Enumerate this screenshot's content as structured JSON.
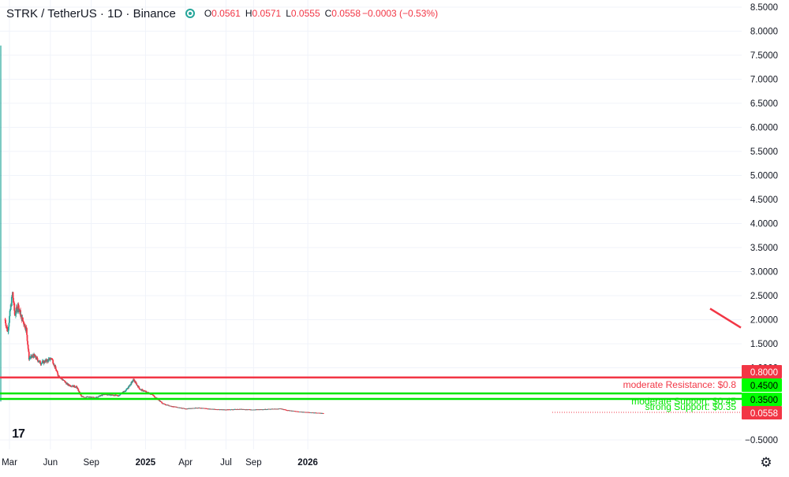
{
  "header": {
    "symbol": "STRK / TetherUS · 1D · Binance",
    "o_label": "O",
    "o_value": "0.0561",
    "h_label": "H",
    "h_value": "0.0571",
    "l_label": "L",
    "l_value": "0.0555",
    "c_label": "C",
    "c_value": "0.0558",
    "change": "−0.0003 (−0.53%)"
  },
  "colors": {
    "up": "#26a69a",
    "down": "#f23645",
    "resistance": "#f23645",
    "support": "#00e600",
    "grid": "#f0f3fa",
    "text": "#131722",
    "trend": "#f23645"
  },
  "icons": {
    "logo": "tradingview-logo-icon",
    "settings": "gear-icon",
    "status": "live-status-dot-icon"
  },
  "chart_data": {
    "type": "candlestick",
    "title": "STRK / TetherUS · 1D · Binance",
    "grid": true,
    "ylim": [
      -0.5,
      8.5
    ],
    "y_ticks": [
      "8.5000",
      "8.0000",
      "7.5000",
      "7.0000",
      "6.5000",
      "6.0000",
      "5.5000",
      "5.0000",
      "4.5000",
      "4.0000",
      "3.5000",
      "3.0000",
      "2.5000",
      "2.0000",
      "1.5000",
      "1.0000",
      "0.8000",
      "0.4500",
      "0.3500",
      "0.0558",
      "−0.5000"
    ],
    "x_ticks": [
      {
        "label": "Mar",
        "date": "2024-03-01",
        "bold": false
      },
      {
        "label": "Jun",
        "date": "2024-06-01",
        "bold": false
      },
      {
        "label": "Sep",
        "date": "2024-09-01",
        "bold": false
      },
      {
        "label": "2025",
        "date": "2025-01-01",
        "bold": true
      },
      {
        "label": "Apr",
        "date": "2025-04-01",
        "bold": false
      },
      {
        "label": "Jul",
        "date": "2025-07-01",
        "bold": false
      },
      {
        "label": "Sep",
        "date": "2025-09-01",
        "bold": false
      },
      {
        "label": "2026",
        "date": "2026-01-01",
        "bold": true
      }
    ],
    "price_trajectory": [
      {
        "date": "2024-02-20",
        "close": 2.0
      },
      {
        "date": "2024-02-26",
        "close": 1.75
      },
      {
        "date": "2024-03-05",
        "close": 2.35
      },
      {
        "date": "2024-03-08",
        "close": 2.55
      },
      {
        "date": "2024-03-13",
        "close": 2.1
      },
      {
        "date": "2024-03-20",
        "close": 2.3
      },
      {
        "date": "2024-03-28",
        "close": 2.05
      },
      {
        "date": "2024-04-08",
        "close": 1.8
      },
      {
        "date": "2024-04-14",
        "close": 1.2
      },
      {
        "date": "2024-04-25",
        "close": 1.25
      },
      {
        "date": "2024-05-10",
        "close": 1.1
      },
      {
        "date": "2024-05-25",
        "close": 1.15
      },
      {
        "date": "2024-06-04",
        "close": 1.2
      },
      {
        "date": "2024-06-18",
        "close": 0.85
      },
      {
        "date": "2024-07-10",
        "close": 0.65
      },
      {
        "date": "2024-07-30",
        "close": 0.6
      },
      {
        "date": "2024-08-10",
        "close": 0.4
      },
      {
        "date": "2024-09-10",
        "close": 0.38
      },
      {
        "date": "2024-10-01",
        "close": 0.45
      },
      {
        "date": "2024-11-01",
        "close": 0.42
      },
      {
        "date": "2024-11-20",
        "close": 0.55
      },
      {
        "date": "2024-12-05",
        "close": 0.75
      },
      {
        "date": "2024-12-20",
        "close": 0.55
      },
      {
        "date": "2025-01-15",
        "close": 0.45
      },
      {
        "date": "2025-02-10",
        "close": 0.25
      },
      {
        "date": "2025-03-01",
        "close": 0.2
      },
      {
        "date": "2025-04-01",
        "close": 0.15
      },
      {
        "date": "2025-05-01",
        "close": 0.17
      },
      {
        "date": "2025-06-01",
        "close": 0.14
      },
      {
        "date": "2025-07-01",
        "close": 0.13
      },
      {
        "date": "2025-08-01",
        "close": 0.14
      },
      {
        "date": "2025-09-01",
        "close": 0.13
      },
      {
        "date": "2025-10-01",
        "close": 0.14
      },
      {
        "date": "2025-11-01",
        "close": 0.15
      },
      {
        "date": "2025-11-15",
        "close": 0.12
      },
      {
        "date": "2025-12-10",
        "close": 0.09
      },
      {
        "date": "2026-01-10",
        "close": 0.07
      },
      {
        "date": "2026-02-05",
        "close": 0.0558
      }
    ],
    "last_price": 0.0558,
    "horizontal_levels": [
      {
        "label": "moderate Resistance: $0.8",
        "price": 0.8,
        "axis_label": "0.8000",
        "kind": "resistance"
      },
      {
        "label": "moderate Support: $0.45",
        "price": 0.45,
        "axis_label": "0.4500",
        "kind": "support"
      },
      {
        "label": "strong Support: $0.35",
        "price": 0.35,
        "axis_label": "0.3500",
        "kind": "support"
      }
    ],
    "trend_line": {
      "kind": "resistance-downtrend",
      "start_price": 2.1,
      "end_price": 1.9
    }
  }
}
